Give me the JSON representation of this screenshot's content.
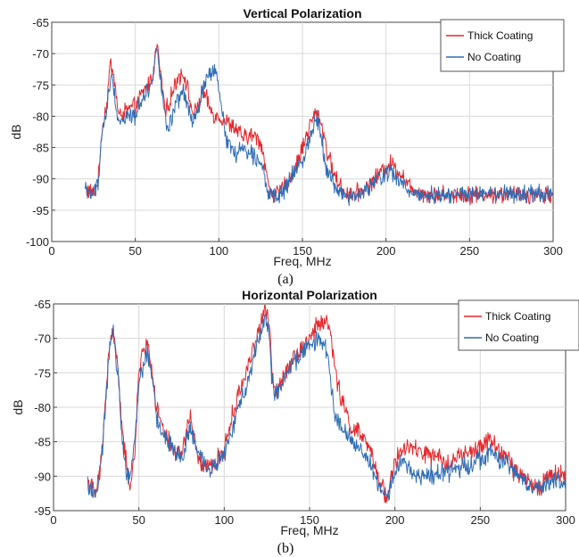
{
  "figure": {
    "captions": [
      "(a)",
      "(b)"
    ]
  },
  "chart_data": [
    {
      "type": "line",
      "title": "Vertical Polarization",
      "xlabel": "Freq, MHz",
      "ylabel": "dB",
      "xlim": [
        0,
        300
      ],
      "ylim": [
        -100,
        -65
      ],
      "xticks": [
        0,
        50,
        100,
        150,
        200,
        250,
        300
      ],
      "yticks": [
        -100,
        -95,
        -90,
        -85,
        -80,
        -75,
        -70,
        -65
      ],
      "grid": true,
      "legend_position": "top-right",
      "series": [
        {
          "name": "Thick Coating",
          "color": "#e8262b",
          "x": [
            20,
            25,
            28,
            30,
            33,
            35,
            37,
            40,
            45,
            50,
            55,
            60,
            63,
            65,
            68,
            70,
            75,
            78,
            80,
            83,
            85,
            88,
            90,
            93,
            95,
            98,
            100,
            105,
            110,
            115,
            120,
            125,
            128,
            130,
            135,
            140,
            145,
            150,
            155,
            158,
            160,
            163,
            165,
            170,
            175,
            180,
            185,
            190,
            195,
            200,
            203,
            205,
            210,
            215,
            220,
            225,
            230,
            240,
            250,
            260,
            270,
            280,
            290,
            300
          ],
          "y": [
            -91.5,
            -92.5,
            -90,
            -82,
            -78,
            -71.5,
            -73,
            -80,
            -79,
            -78.5,
            -76,
            -74,
            -68.5,
            -73,
            -79.5,
            -78,
            -74,
            -73,
            -74,
            -78,
            -80,
            -78,
            -76,
            -77.5,
            -79,
            -80,
            -80,
            -81,
            -82,
            -83.5,
            -83,
            -84,
            -88,
            -92,
            -92.5,
            -91,
            -89,
            -85,
            -81,
            -79.5,
            -80,
            -83,
            -86,
            -90,
            -92,
            -92.5,
            -92,
            -91,
            -89.5,
            -88,
            -87.5,
            -88,
            -89.5,
            -91.5,
            -92,
            -92.5,
            -92.5,
            -92.5,
            -92.5,
            -92.5,
            -92.5,
            -92.5,
            -92.5,
            -92.5
          ]
        },
        {
          "name": "No Coating",
          "color": "#2f6db5",
          "x": [
            20,
            25,
            28,
            30,
            33,
            35,
            37,
            40,
            45,
            50,
            55,
            60,
            63,
            65,
            68,
            70,
            75,
            78,
            80,
            83,
            85,
            88,
            90,
            93,
            95,
            98,
            100,
            105,
            110,
            115,
            120,
            125,
            128,
            130,
            135,
            140,
            145,
            150,
            155,
            158,
            160,
            163,
            165,
            170,
            175,
            180,
            185,
            190,
            195,
            200,
            203,
            205,
            210,
            215,
            220,
            225,
            230,
            240,
            250,
            260,
            270,
            280,
            290,
            300
          ],
          "y": [
            -91.5,
            -92.5,
            -90,
            -83,
            -79,
            -74,
            -75,
            -81,
            -80,
            -80,
            -76.5,
            -75,
            -68,
            -74,
            -81,
            -82,
            -78,
            -76,
            -77,
            -80,
            -81,
            -79,
            -76,
            -74,
            -73,
            -73,
            -76,
            -84,
            -86,
            -85,
            -86,
            -87,
            -90,
            -93,
            -93,
            -91.5,
            -89,
            -87,
            -83,
            -80,
            -81,
            -86,
            -89,
            -91.5,
            -92.5,
            -93,
            -92.5,
            -91.5,
            -90,
            -89,
            -89,
            -89.5,
            -91,
            -92,
            -92.5,
            -92.5,
            -92.5,
            -92.5,
            -92.5,
            -92.5,
            -92.5,
            -92.5,
            -92.5,
            -92.5
          ]
        }
      ]
    },
    {
      "type": "line",
      "title": "Horizontal Polarization",
      "xlabel": "Freq, MHz",
      "ylabel": "dB",
      "xlim": [
        0,
        300
      ],
      "ylim": [
        -95,
        -65
      ],
      "xticks": [
        0,
        50,
        100,
        150,
        200,
        250,
        300
      ],
      "yticks": [
        -95,
        -90,
        -85,
        -80,
        -75,
        -70,
        -65
      ],
      "grid": true,
      "legend_position": "top-right",
      "series": [
        {
          "name": "Thick Coating",
          "color": "#e8262b",
          "x": [
            20,
            23,
            25,
            28,
            30,
            33,
            35,
            38,
            40,
            43,
            45,
            48,
            50,
            55,
            58,
            60,
            65,
            70,
            75,
            80,
            85,
            90,
            95,
            100,
            105,
            110,
            115,
            120,
            124,
            126,
            128,
            130,
            135,
            140,
            145,
            150,
            155,
            160,
            163,
            165,
            170,
            175,
            180,
            185,
            190,
            195,
            200,
            205,
            210,
            220,
            230,
            240,
            250,
            255,
            260,
            265,
            270,
            280,
            285,
            290,
            300
          ],
          "y": [
            -90.5,
            -92,
            -92.5,
            -88,
            -80,
            -70.5,
            -69,
            -75,
            -83,
            -89,
            -91,
            -86,
            -74,
            -70.5,
            -75,
            -80,
            -84,
            -86,
            -87,
            -81,
            -88,
            -89,
            -88,
            -86,
            -81,
            -77,
            -73,
            -69,
            -66,
            -67,
            -75,
            -78,
            -75,
            -73,
            -71.5,
            -70,
            -68,
            -67.5,
            -70,
            -75,
            -80,
            -83,
            -84,
            -86,
            -90,
            -93,
            -88,
            -86,
            -86,
            -87,
            -88,
            -87,
            -86,
            -84.5,
            -86,
            -87,
            -89,
            -91,
            -92,
            -89.5,
            -90
          ]
        },
        {
          "name": "No Coating",
          "color": "#2f6db5",
          "x": [
            20,
            23,
            25,
            28,
            30,
            33,
            35,
            38,
            40,
            43,
            45,
            48,
            50,
            55,
            58,
            60,
            65,
            70,
            75,
            80,
            85,
            90,
            95,
            100,
            105,
            110,
            115,
            120,
            124,
            126,
            128,
            130,
            135,
            140,
            145,
            150,
            155,
            160,
            163,
            165,
            170,
            175,
            180,
            185,
            190,
            195,
            200,
            205,
            210,
            220,
            230,
            240,
            250,
            255,
            260,
            265,
            270,
            280,
            285,
            290,
            300
          ],
          "y": [
            -91,
            -92,
            -92.5,
            -88.5,
            -81,
            -71,
            -69.5,
            -76,
            -84,
            -89.5,
            -90,
            -84,
            -76,
            -72,
            -76,
            -81,
            -84.5,
            -86,
            -87.5,
            -83,
            -87,
            -89,
            -88,
            -87,
            -83,
            -79,
            -75,
            -70,
            -67,
            -68,
            -76,
            -78.5,
            -76,
            -74,
            -72,
            -71,
            -70,
            -72,
            -77,
            -81,
            -83.5,
            -85,
            -86,
            -88,
            -91,
            -93.5,
            -89,
            -88,
            -89.5,
            -90,
            -89.5,
            -88.5,
            -87.5,
            -86.5,
            -87.5,
            -88,
            -89.5,
            -91.5,
            -92,
            -90.5,
            -91
          ]
        }
      ]
    }
  ]
}
